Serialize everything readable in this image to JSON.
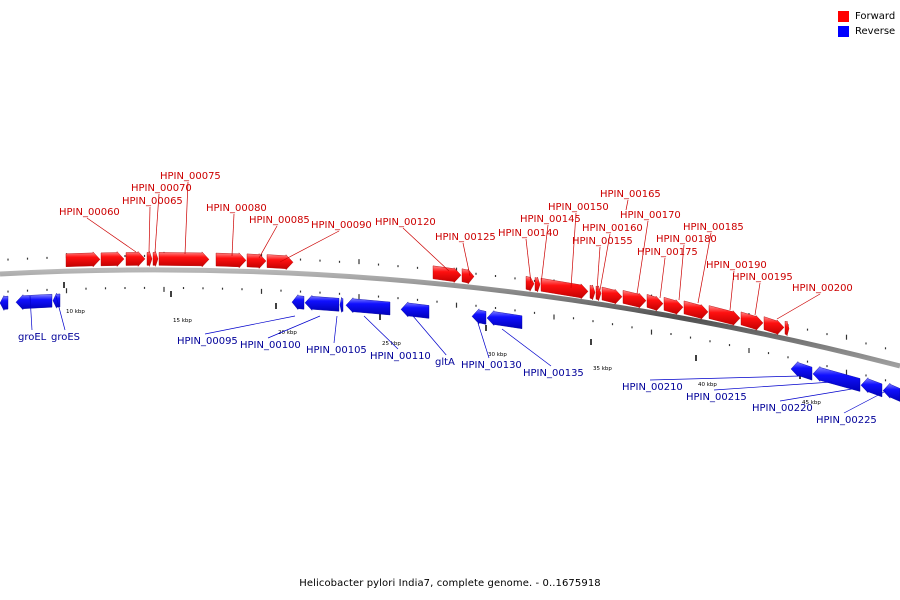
{
  "legend": {
    "forward_label": "Forward",
    "reverse_label": "Reverse",
    "forward_color": "#ff0000",
    "reverse_color": "#0000ff"
  },
  "caption": "Helicobacter pylori India7, complete genome. - 0..1675918",
  "scale_labels": [
    "10 kbp",
    "15 kbp",
    "20 kbp",
    "25 kbp",
    "30 kbp",
    "35 kbp",
    "40 kbp",
    "45 kbp"
  ],
  "forward_genes": [
    "HPIN_00060",
    "HPIN_00065",
    "HPIN_00070",
    "HPIN_00075",
    "HPIN_00080",
    "HPIN_00085",
    "HPIN_00090",
    "HPIN_00120",
    "HPIN_00125",
    "HPIN_00140",
    "HPIN_00145",
    "HPIN_00150",
    "HPIN_00155",
    "HPIN_00160",
    "HPIN_00165",
    "HPIN_00170",
    "HPIN_00175",
    "HPIN_00180",
    "HPIN_00185",
    "HPIN_00190",
    "HPIN_00195",
    "HPIN_00200"
  ],
  "reverse_genes": [
    "groEL",
    "groES",
    "HPIN_00095",
    "HPIN_00100",
    "HPIN_00105",
    "HPIN_00110",
    "gltA",
    "HPIN_00130",
    "HPIN_00135",
    "HPIN_00210",
    "HPIN_00215",
    "HPIN_00220",
    "HPIN_00225"
  ]
}
